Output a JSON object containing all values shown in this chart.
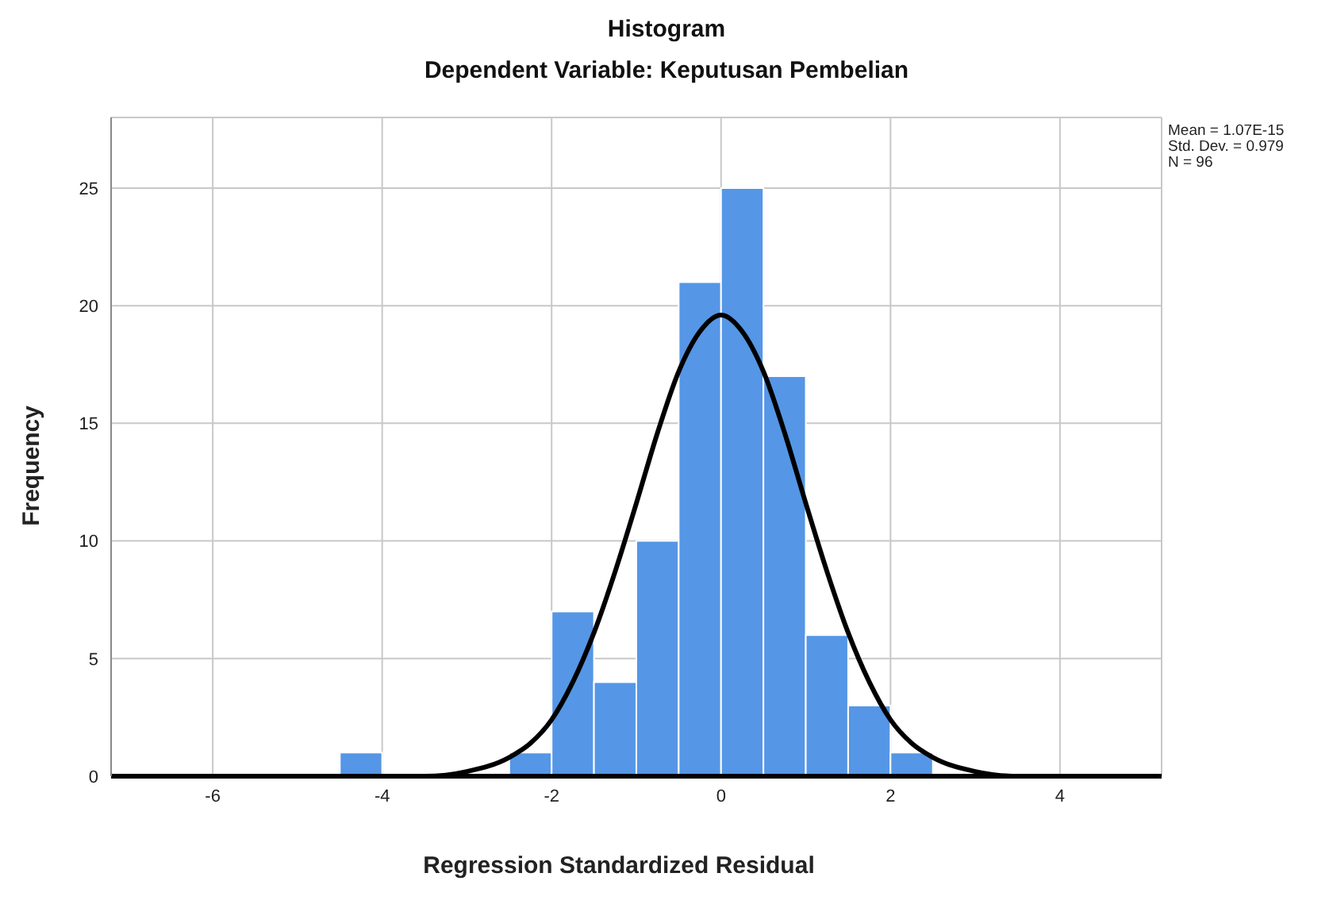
{
  "chart_data": {
    "type": "histogram",
    "title": "Histogram",
    "subtitle": "Dependent Variable: Keputusan Pembelian",
    "xlabel": "Regression Standardized Residual",
    "ylabel": "Frequency",
    "bins": [
      -4.5,
      -4,
      -3.5,
      -3,
      -2.5,
      -2,
      -1.5,
      -1,
      -0.5,
      0,
      0.5,
      1,
      1.5,
      2,
      2.5
    ],
    "values": [
      1,
      0,
      0,
      0,
      1,
      7,
      4,
      10,
      21,
      25,
      17,
      6,
      3,
      1
    ],
    "color": "#5596e6",
    "series": [
      {
        "type": "line",
        "color": "#000000",
        "x": [
          -7.2,
          -5,
          -4,
          -3.5,
          -3,
          -2.5,
          -2.25,
          -2,
          -1.75,
          -1.5,
          -1.25,
          -1,
          -0.75,
          -0.5,
          -0.25,
          0,
          0.25,
          0.5,
          0.75,
          1,
          1.25,
          1.5,
          1.75,
          2,
          2.25,
          2.5,
          3,
          3.5,
          4,
          5.2
        ],
        "values": [
          0,
          0,
          0,
          0,
          0.2,
          0.8,
          1.4,
          2.4,
          4,
          6.1,
          8.7,
          11.6,
          14.6,
          17.2,
          18.9,
          19.6,
          18.9,
          17.2,
          14.6,
          11.6,
          8.7,
          6.1,
          4,
          2.4,
          1.4,
          0.8,
          0.2,
          0,
          0,
          0
        ]
      }
    ],
    "annotations": [
      "Mean = 1.07E-15",
      "Std. Dev. = 0.979",
      "N = 96"
    ],
    "xlim": [
      -7.2,
      5.2
    ],
    "xticks": [
      -6,
      -4,
      -2,
      0,
      2,
      4
    ],
    "ylim": [
      0,
      28
    ],
    "yticks": [
      0,
      5,
      10,
      15,
      20,
      25
    ],
    "grid": true,
    "marker": "none",
    "line_style": "solid"
  }
}
